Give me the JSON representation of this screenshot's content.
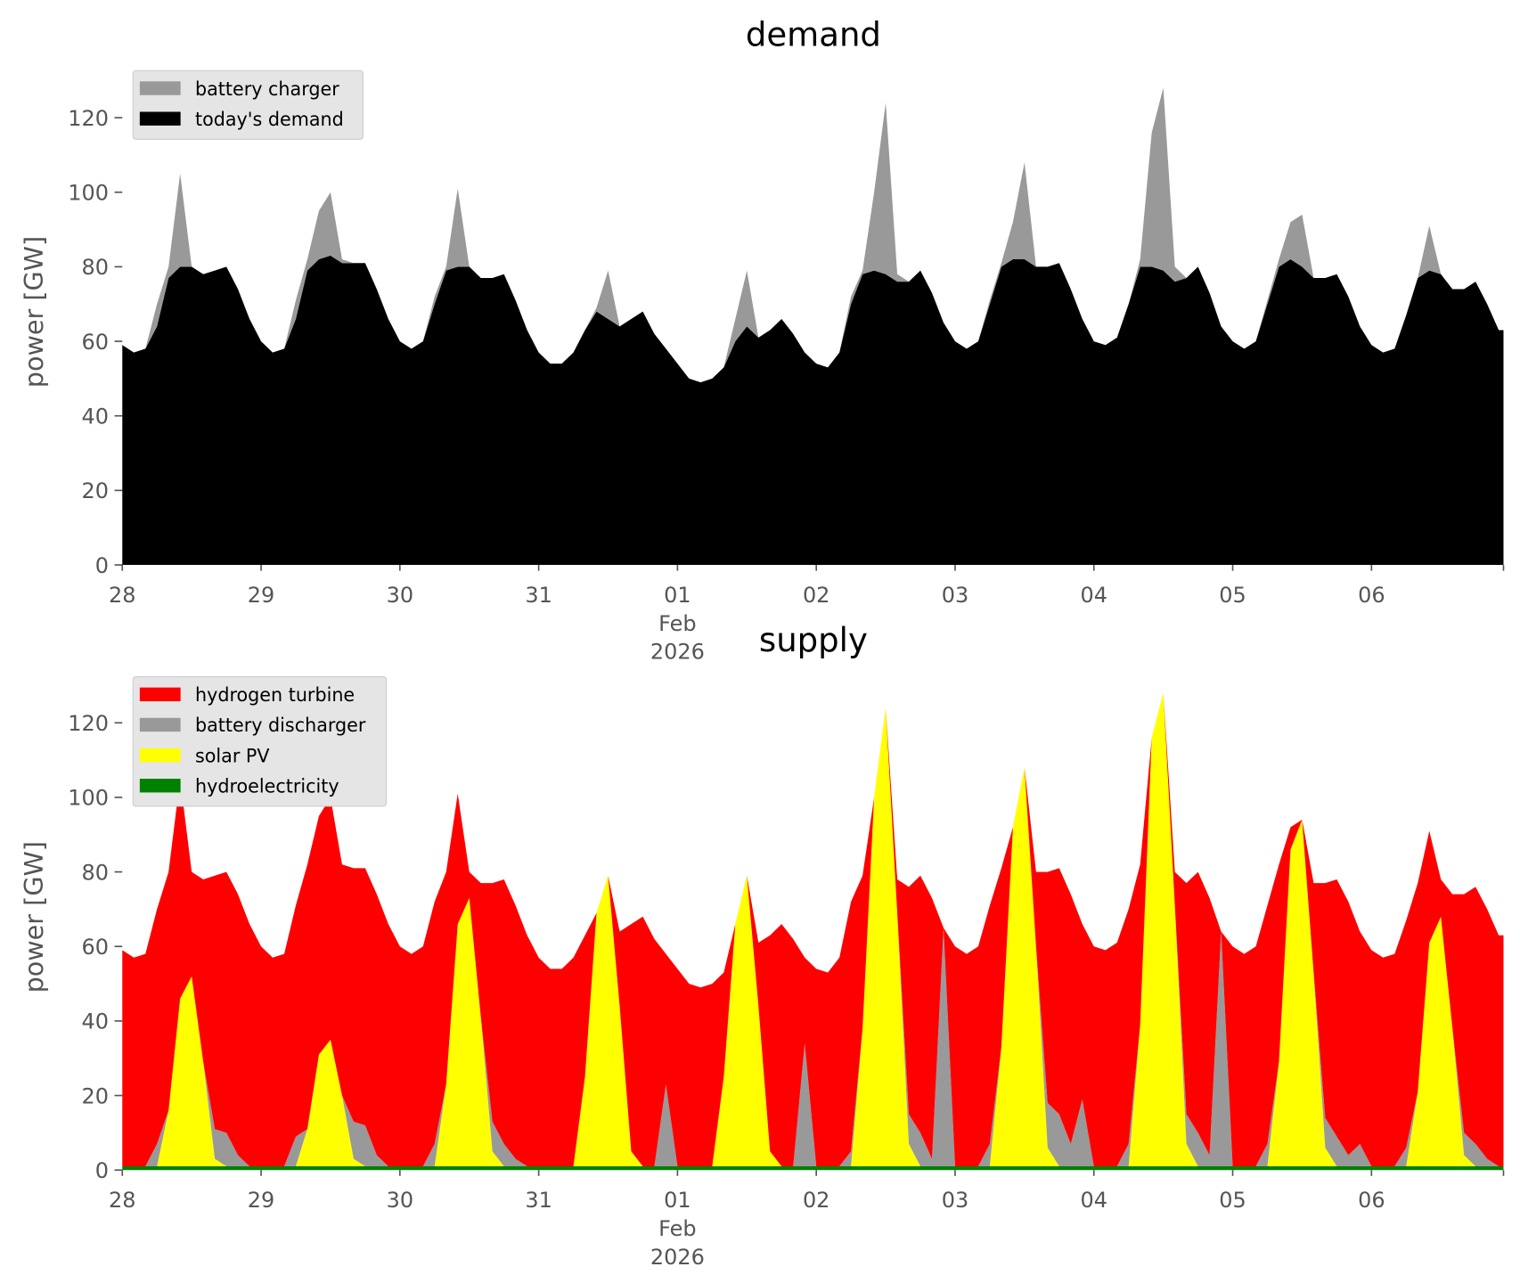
{
  "chart_data": [
    {
      "type": "area",
      "stacked": true,
      "title": "demand",
      "ylabel": "power [GW]",
      "ylim": [
        0,
        133
      ],
      "y_ticks": [
        "0",
        "20",
        "40",
        "60",
        "80",
        "100",
        "120"
      ],
      "x_ticks": [
        "28",
        "29",
        "30",
        "31",
        "01\nFeb\n2026",
        "02",
        "03",
        "04",
        "05",
        "06"
      ],
      "legend": "top-left",
      "legend_order": [
        "battery charger",
        "today's demand"
      ],
      "x": [
        "2026-01-28T00:00",
        "2026-01-28T02:00",
        "2026-01-28T04:00",
        "2026-01-28T06:00",
        "2026-01-28T08:00",
        "2026-01-28T10:00",
        "2026-01-28T12:00",
        "2026-01-28T14:00",
        "2026-01-28T16:00",
        "2026-01-28T18:00",
        "2026-01-28T20:00",
        "2026-01-28T22:00",
        "2026-01-29T00:00",
        "2026-01-29T02:00",
        "2026-01-29T04:00",
        "2026-01-29T06:00",
        "2026-01-29T08:00",
        "2026-01-29T10:00",
        "2026-01-29T12:00",
        "2026-01-29T14:00",
        "2026-01-29T16:00",
        "2026-01-29T18:00",
        "2026-01-29T20:00",
        "2026-01-29T22:00",
        "2026-01-30T00:00",
        "2026-01-30T02:00",
        "2026-01-30T04:00",
        "2026-01-30T06:00",
        "2026-01-30T08:00",
        "2026-01-30T10:00",
        "2026-01-30T12:00",
        "2026-01-30T14:00",
        "2026-01-30T16:00",
        "2026-01-30T18:00",
        "2026-01-30T20:00",
        "2026-01-30T22:00",
        "2026-01-31T00:00",
        "2026-01-31T02:00",
        "2026-01-31T04:00",
        "2026-01-31T06:00",
        "2026-01-31T08:00",
        "2026-01-31T10:00",
        "2026-01-31T12:00",
        "2026-01-31T14:00",
        "2026-01-31T16:00",
        "2026-01-31T18:00",
        "2026-01-31T20:00",
        "2026-01-31T22:00",
        "2026-02-01T00:00",
        "2026-02-01T02:00",
        "2026-02-01T04:00",
        "2026-02-01T06:00",
        "2026-02-01T08:00",
        "2026-02-01T10:00",
        "2026-02-01T12:00",
        "2026-02-01T14:00",
        "2026-02-01T16:00",
        "2026-02-01T18:00",
        "2026-02-01T20:00",
        "2026-02-01T22:00",
        "2026-02-02T00:00",
        "2026-02-02T02:00",
        "2026-02-02T04:00",
        "2026-02-02T06:00",
        "2026-02-02T08:00",
        "2026-02-02T10:00",
        "2026-02-02T12:00",
        "2026-02-02T14:00",
        "2026-02-02T16:00",
        "2026-02-02T18:00",
        "2026-02-02T20:00",
        "2026-02-02T22:00",
        "2026-02-03T00:00",
        "2026-02-03T02:00",
        "2026-02-03T04:00",
        "2026-02-03T06:00",
        "2026-02-03T08:00",
        "2026-02-03T10:00",
        "2026-02-03T12:00",
        "2026-02-03T14:00",
        "2026-02-03T16:00",
        "2026-02-03T18:00",
        "2026-02-03T20:00",
        "2026-02-03T22:00",
        "2026-02-04T00:00",
        "2026-02-04T02:00",
        "2026-02-04T04:00",
        "2026-02-04T06:00",
        "2026-02-04T08:00",
        "2026-02-04T10:00",
        "2026-02-04T12:00",
        "2026-02-04T14:00",
        "2026-02-04T16:00",
        "2026-02-04T18:00",
        "2026-02-04T20:00",
        "2026-02-04T22:00",
        "2026-02-05T00:00",
        "2026-02-05T02:00",
        "2026-02-05T04:00",
        "2026-02-05T06:00",
        "2026-02-05T08:00",
        "2026-02-05T10:00",
        "2026-02-05T12:00",
        "2026-02-05T14:00",
        "2026-02-05T16:00",
        "2026-02-05T18:00",
        "2026-02-05T20:00",
        "2026-02-05T22:00",
        "2026-02-06T00:00",
        "2026-02-06T02:00",
        "2026-02-06T04:00",
        "2026-02-06T06:00",
        "2026-02-06T08:00",
        "2026-02-06T10:00",
        "2026-02-06T12:00",
        "2026-02-06T14:00",
        "2026-02-06T16:00",
        "2026-02-06T18:00",
        "2026-02-06T20:00",
        "2026-02-06T22:00"
      ],
      "series": [
        {
          "name": "today's demand",
          "color": "#000000",
          "values": [
            59,
            57,
            58,
            64,
            77,
            80,
            80,
            78,
            79,
            80,
            74,
            66,
            60,
            57,
            58,
            66,
            79,
            82,
            83,
            81,
            81,
            81,
            74,
            66,
            60,
            58,
            60,
            70,
            79,
            80,
            80,
            77,
            77,
            78,
            71,
            63,
            57,
            54,
            54,
            57,
            63,
            68,
            66,
            64,
            66,
            68,
            62,
            58,
            54,
            50,
            49,
            50,
            53,
            60,
            64,
            61,
            63,
            66,
            62,
            57,
            54,
            53,
            57,
            70,
            78,
            79,
            78,
            76,
            76,
            79,
            73,
            65,
            60,
            58,
            60,
            70,
            80,
            82,
            82,
            80,
            80,
            81,
            74,
            66,
            60,
            59,
            61,
            70,
            80,
            80,
            79,
            76,
            77,
            80,
            73,
            64,
            60,
            58,
            60,
            70,
            80,
            82,
            80,
            77,
            77,
            78,
            72,
            64,
            59,
            57,
            58,
            67,
            77,
            79,
            78,
            74,
            74,
            76,
            70,
            63
          ]
        },
        {
          "name": "battery charger",
          "color": "#999999",
          "values": [
            0,
            0,
            0,
            6,
            3,
            25,
            0,
            0,
            0,
            0,
            0,
            0,
            0,
            0,
            0,
            5,
            3,
            13,
            17,
            1,
            0,
            0,
            0,
            0,
            0,
            0,
            0,
            2,
            1,
            21,
            0,
            0,
            0,
            0,
            0,
            0,
            0,
            0,
            0,
            0,
            0,
            1,
            13,
            0,
            0,
            0,
            0,
            0,
            0,
            0,
            0,
            0,
            0,
            6,
            15,
            0,
            0,
            0,
            0,
            0,
            0,
            0,
            0,
            2,
            1,
            21,
            46,
            2,
            0,
            0,
            0,
            0,
            0,
            0,
            0,
            1,
            1,
            10,
            26,
            0,
            0,
            0,
            0,
            0,
            0,
            0,
            0,
            0,
            2,
            36,
            49,
            4,
            0,
            0,
            0,
            0,
            0,
            0,
            0,
            1,
            2,
            10,
            14,
            0,
            0,
            0,
            0,
            0,
            0,
            0,
            0,
            0,
            0,
            12,
            0,
            0,
            0,
            0,
            0,
            0
          ]
        }
      ]
    },
    {
      "type": "area",
      "stacked": true,
      "title": "supply",
      "ylabel": "power [GW]",
      "ylim": [
        0,
        133
      ],
      "y_ticks": [
        "0",
        "20",
        "40",
        "60",
        "80",
        "100",
        "120"
      ],
      "x_ticks": [
        "28",
        "29",
        "30",
        "31",
        "01\nFeb\n2026",
        "02",
        "03",
        "04",
        "05",
        "06"
      ],
      "legend": "top-left",
      "legend_order": [
        "hydrogen turbine",
        "battery discharger",
        "solar PV",
        "hydroelectricity"
      ],
      "x": [
        "2026-01-28T00:00",
        "2026-01-28T02:00",
        "2026-01-28T04:00",
        "2026-01-28T06:00",
        "2026-01-28T08:00",
        "2026-01-28T10:00",
        "2026-01-28T12:00",
        "2026-01-28T14:00",
        "2026-01-28T16:00",
        "2026-01-28T18:00",
        "2026-01-28T20:00",
        "2026-01-28T22:00",
        "2026-01-29T00:00",
        "2026-01-29T02:00",
        "2026-01-29T04:00",
        "2026-01-29T06:00",
        "2026-01-29T08:00",
        "2026-01-29T10:00",
        "2026-01-29T12:00",
        "2026-01-29T14:00",
        "2026-01-29T16:00",
        "2026-01-29T18:00",
        "2026-01-29T20:00",
        "2026-01-29T22:00",
        "2026-01-30T00:00",
        "2026-01-30T02:00",
        "2026-01-30T04:00",
        "2026-01-30T06:00",
        "2026-01-30T08:00",
        "2026-01-30T10:00",
        "2026-01-30T12:00",
        "2026-01-30T14:00",
        "2026-01-30T16:00",
        "2026-01-30T18:00",
        "2026-01-30T20:00",
        "2026-01-30T22:00",
        "2026-01-31T00:00",
        "2026-01-31T02:00",
        "2026-01-31T04:00",
        "2026-01-31T06:00",
        "2026-01-31T08:00",
        "2026-01-31T10:00",
        "2026-01-31T12:00",
        "2026-01-31T14:00",
        "2026-01-31T16:00",
        "2026-01-31T18:00",
        "2026-01-31T20:00",
        "2026-01-31T22:00",
        "2026-02-01T00:00",
        "2026-02-01T02:00",
        "2026-02-01T04:00",
        "2026-02-01T06:00",
        "2026-02-01T08:00",
        "2026-02-01T10:00",
        "2026-02-01T12:00",
        "2026-02-01T14:00",
        "2026-02-01T16:00",
        "2026-02-01T18:00",
        "2026-02-01T20:00",
        "2026-02-01T22:00",
        "2026-02-02T00:00",
        "2026-02-02T02:00",
        "2026-02-02T04:00",
        "2026-02-02T06:00",
        "2026-02-02T08:00",
        "2026-02-02T10:00",
        "2026-02-02T12:00",
        "2026-02-02T14:00",
        "2026-02-02T16:00",
        "2026-02-02T18:00",
        "2026-02-02T20:00",
        "2026-02-02T22:00",
        "2026-02-03T00:00",
        "2026-02-03T02:00",
        "2026-02-03T04:00",
        "2026-02-03T06:00",
        "2026-02-03T08:00",
        "2026-02-03T10:00",
        "2026-02-03T12:00",
        "2026-02-03T14:00",
        "2026-02-03T16:00",
        "2026-02-03T18:00",
        "2026-02-03T20:00",
        "2026-02-03T22:00",
        "2026-02-04T00:00",
        "2026-02-04T02:00",
        "2026-02-04T04:00",
        "2026-02-04T06:00",
        "2026-02-04T08:00",
        "2026-02-04T10:00",
        "2026-02-04T12:00",
        "2026-02-04T14:00",
        "2026-02-04T16:00",
        "2026-02-04T18:00",
        "2026-02-04T20:00",
        "2026-02-04T22:00",
        "2026-02-05T00:00",
        "2026-02-05T02:00",
        "2026-02-05T04:00",
        "2026-02-05T06:00",
        "2026-02-05T08:00",
        "2026-02-05T10:00",
        "2026-02-05T12:00",
        "2026-02-05T14:00",
        "2026-02-05T16:00",
        "2026-02-05T18:00",
        "2026-02-05T20:00",
        "2026-02-05T22:00",
        "2026-02-06T00:00",
        "2026-02-06T02:00",
        "2026-02-06T04:00",
        "2026-02-06T06:00",
        "2026-02-06T08:00",
        "2026-02-06T10:00",
        "2026-02-06T12:00",
        "2026-02-06T14:00",
        "2026-02-06T16:00",
        "2026-02-06T18:00",
        "2026-02-06T20:00",
        "2026-02-06T22:00"
      ],
      "series": [
        {
          "name": "hydroelectricity",
          "color": "#008000",
          "values": [
            1,
            1,
            1,
            1,
            1,
            1,
            1,
            1,
            1,
            1,
            1,
            1,
            1,
            1,
            1,
            1,
            1,
            1,
            1,
            1,
            1,
            1,
            1,
            1,
            1,
            1,
            1,
            1,
            1,
            1,
            1,
            1,
            1,
            1,
            1,
            1,
            1,
            1,
            1,
            1,
            1,
            1,
            1,
            1,
            1,
            1,
            1,
            1,
            1,
            1,
            1,
            1,
            1,
            1,
            1,
            1,
            1,
            1,
            1,
            1,
            1,
            1,
            1,
            1,
            1,
            1,
            1,
            1,
            1,
            1,
            1,
            1,
            1,
            1,
            1,
            1,
            1,
            1,
            1,
            1,
            1,
            1,
            1,
            1,
            1,
            1,
            1,
            1,
            1,
            1,
            1,
            1,
            1,
            1,
            1,
            1,
            1,
            1,
            1,
            1,
            1,
            1,
            1,
            1,
            1,
            1,
            1,
            1,
            1,
            1,
            1,
            1,
            1,
            1,
            1,
            1,
            1,
            1,
            1,
            1
          ]
        },
        {
          "name": "solar PV",
          "color": "#ffff00",
          "values": [
            0,
            0,
            0,
            0,
            15,
            45,
            51,
            28,
            2,
            0,
            0,
            0,
            0,
            0,
            0,
            0,
            10,
            30,
            34,
            19,
            2,
            0,
            0,
            0,
            0,
            0,
            0,
            0,
            22,
            65,
            72,
            40,
            4,
            0,
            0,
            0,
            0,
            0,
            0,
            0,
            24,
            68,
            78,
            43,
            4,
            0,
            0,
            0,
            0,
            0,
            0,
            0,
            24,
            65,
            78,
            43,
            4,
            0,
            0,
            0,
            0,
            0,
            0,
            0,
            37,
            99,
            123,
            68,
            6,
            0,
            0,
            0,
            0,
            0,
            0,
            0,
            32,
            91,
            107,
            59,
            5,
            0,
            0,
            0,
            0,
            0,
            0,
            0,
            38,
            115,
            127,
            70,
            6,
            0,
            0,
            0,
            0,
            0,
            0,
            0,
            28,
            85,
            93,
            52,
            5,
            0,
            0,
            0,
            0,
            0,
            0,
            0,
            20,
            60,
            67,
            37,
            3,
            0,
            0,
            0
          ]
        },
        {
          "name": "battery discharger",
          "color": "#999999",
          "values": [
            0,
            0,
            0,
            6,
            0,
            0,
            0,
            0,
            8,
            9,
            3,
            0,
            0,
            0,
            0,
            8,
            0,
            0,
            0,
            0,
            10,
            11,
            3,
            0,
            0,
            0,
            0,
            6,
            0,
            0,
            0,
            0,
            8,
            6,
            2,
            0,
            0,
            0,
            0,
            0,
            0,
            0,
            0,
            0,
            0,
            0,
            0,
            22,
            0,
            0,
            0,
            0,
            0,
            0,
            0,
            0,
            0,
            0,
            0,
            33,
            0,
            0,
            0,
            4,
            0,
            0,
            0,
            0,
            8,
            9,
            2,
            64,
            0,
            0,
            0,
            6,
            0,
            0,
            0,
            0,
            12,
            14,
            6,
            18,
            0,
            0,
            0,
            6,
            0,
            0,
            0,
            0,
            8,
            9,
            3,
            63,
            0,
            0,
            0,
            6,
            0,
            0,
            0,
            0,
            8,
            8,
            3,
            6,
            0,
            0,
            0,
            5,
            0,
            0,
            0,
            0,
            6,
            6,
            2,
            0
          ]
        },
        {
          "name": "hydrogen turbine",
          "color": "#ff0000",
          "values": [
            58,
            56,
            57,
            63,
            64,
            59,
            28,
            49,
            68,
            70,
            70,
            65,
            59,
            56,
            57,
            62,
            71,
            64,
            65,
            62,
            68,
            69,
            70,
            65,
            59,
            57,
            59,
            65,
            57,
            35,
            7,
            36,
            64,
            71,
            68,
            62,
            56,
            53,
            53,
            56,
            38,
            0,
            0,
            20,
            61,
            67,
            61,
            35,
            53,
            49,
            48,
            49,
            28,
            0,
            0,
            17,
            58,
            65,
            61,
            23,
            53,
            52,
            56,
            67,
            41,
            0,
            0,
            9,
            61,
            69,
            70,
            0,
            59,
            57,
            59,
            64,
            48,
            0,
            0,
            20,
            62,
            66,
            67,
            47,
            59,
            58,
            60,
            63,
            43,
            0,
            0,
            9,
            62,
            70,
            69,
            0,
            59,
            57,
            59,
            64,
            53,
            6,
            0,
            24,
            63,
            69,
            68,
            57,
            58,
            56,
            57,
            61,
            56,
            30,
            10,
            36,
            64,
            69,
            67,
            62
          ]
        }
      ]
    }
  ]
}
